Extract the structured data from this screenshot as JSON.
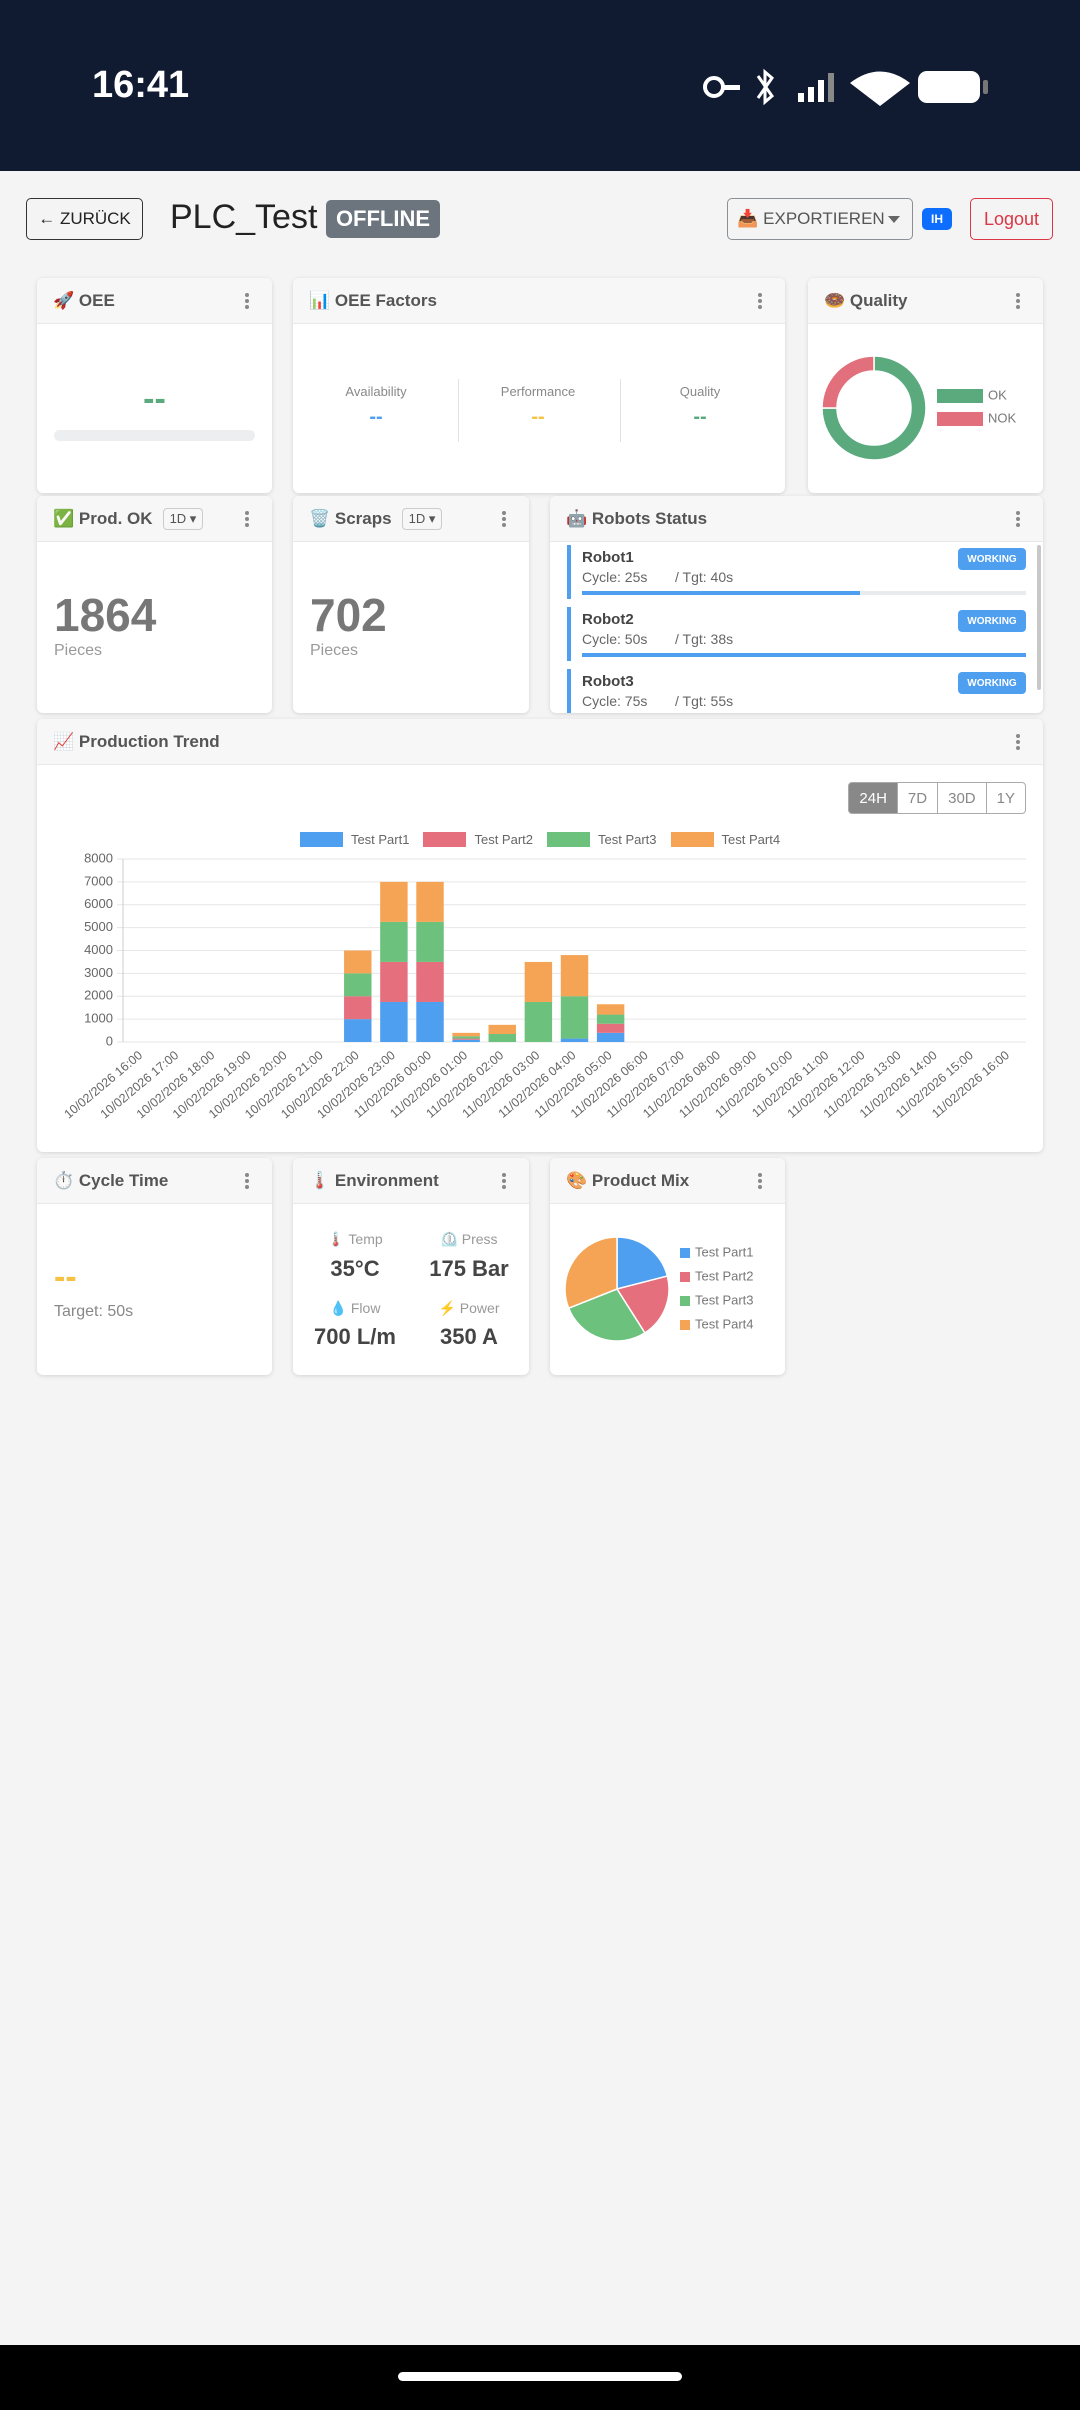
{
  "status_bar": {
    "time": "16:41"
  },
  "header": {
    "back": "← ZURÜCK",
    "title": "PLC_Test",
    "status": "OFFLINE",
    "export": "📥 EXPORTIEREN",
    "user": "IH",
    "logout": "Logout"
  },
  "oee": {
    "title": "🚀 OEE",
    "value": "--"
  },
  "oee_factors": {
    "title": "📊 OEE Factors",
    "items": [
      {
        "label": "Availability",
        "value": "--"
      },
      {
        "label": "Performance",
        "value": "--"
      },
      {
        "label": "Quality",
        "value": "--"
      }
    ]
  },
  "prod_ok": {
    "title": "✅ Prod. OK",
    "range": "1D",
    "value": "1864",
    "unit": "Pieces"
  },
  "scraps": {
    "title": "🗑️ Scraps",
    "range": "1D",
    "value": "702",
    "unit": "Pieces"
  },
  "robots": {
    "title": "🤖 Robots Status",
    "items": [
      {
        "name": "Robot1",
        "status": "WORKING",
        "cycle_label": "Cycle: 25s",
        "target_label": "/ Tgt: 40s",
        "cycle": 25,
        "target": 40
      },
      {
        "name": "Robot2",
        "status": "WORKING",
        "cycle_label": "Cycle: 50s",
        "target_label": "/ Tgt: 38s",
        "cycle": 50,
        "target": 38
      },
      {
        "name": "Robot3",
        "status": "WORKING",
        "cycle_label": "Cycle: 75s",
        "target_label": "/ Tgt: 55s",
        "cycle": 75,
        "target": 55
      }
    ]
  },
  "cycle_time": {
    "title": "⏱️ Cycle Time",
    "value": "--",
    "target": "Target: 50s"
  },
  "environment": {
    "title": "🌡️ Environment",
    "items": [
      {
        "label": "🌡️ Temp",
        "value": "35°C"
      },
      {
        "label": "⏲️ Press",
        "value": "175 Bar"
      },
      {
        "label": "💧 Flow",
        "value": "700 L/m"
      },
      {
        "label": "⚡ Power",
        "value": "350 A"
      }
    ]
  },
  "chart_data": [
    {
      "type": "doughnut",
      "title": "🍩 Quality",
      "categories": [
        "OK",
        "NOK"
      ],
      "values": [
        75,
        25
      ],
      "colors": [
        "#5aaa7e",
        "#e2707c"
      ]
    },
    {
      "type": "bar",
      "title": "📈 Production Trend",
      "stacked": true,
      "grid": true,
      "legend": "top",
      "range_buttons": [
        "24H",
        "7D",
        "30D",
        "1Y"
      ],
      "active_range": "24H",
      "categories": [
        "10/02/2026 16:00",
        "10/02/2026 17:00",
        "10/02/2026 18:00",
        "10/02/2026 19:00",
        "10/02/2026 20:00",
        "10/02/2026 21:00",
        "10/02/2026 22:00",
        "10/02/2026 23:00",
        "11/02/2026 00:00",
        "11/02/2026 01:00",
        "11/02/2026 02:00",
        "11/02/2026 03:00",
        "11/02/2026 04:00",
        "11/02/2026 05:00",
        "11/02/2026 06:00",
        "11/02/2026 07:00",
        "11/02/2026 08:00",
        "11/02/2026 09:00",
        "11/02/2026 10:00",
        "11/02/2026 11:00",
        "11/02/2026 12:00",
        "11/02/2026 13:00",
        "11/02/2026 14:00",
        "11/02/2026 15:00",
        "11/02/2026 16:00"
      ],
      "ylim": [
        0,
        8000
      ],
      "yticks": [
        0,
        1000,
        2000,
        3000,
        4000,
        5000,
        6000,
        7000,
        8000
      ],
      "series": [
        {
          "name": "Test Part1",
          "color": "#4f9ff0",
          "values": [
            0,
            0,
            0,
            0,
            0,
            0,
            1000,
            1750,
            1750,
            100,
            0,
            0,
            150,
            400,
            0,
            0,
            0,
            0,
            0,
            0,
            0,
            0,
            0,
            0,
            0
          ]
        },
        {
          "name": "Test Part2",
          "color": "#e56f7d",
          "values": [
            0,
            0,
            0,
            0,
            0,
            0,
            1000,
            1750,
            1750,
            50,
            0,
            0,
            0,
            400,
            0,
            0,
            0,
            0,
            0,
            0,
            0,
            0,
            0,
            0,
            0
          ]
        },
        {
          "name": "Test Part3",
          "color": "#6cc17c",
          "values": [
            0,
            0,
            0,
            0,
            0,
            0,
            1000,
            1750,
            1750,
            100,
            350,
            1750,
            1850,
            400,
            0,
            0,
            0,
            0,
            0,
            0,
            0,
            0,
            0,
            0,
            0
          ]
        },
        {
          "name": "Test Part4",
          "color": "#f5a455",
          "values": [
            0,
            0,
            0,
            0,
            0,
            0,
            1000,
            1750,
            1750,
            150,
            400,
            1750,
            1800,
            450,
            0,
            0,
            0,
            0,
            0,
            0,
            0,
            0,
            0,
            0,
            0
          ]
        }
      ]
    },
    {
      "type": "pie",
      "title": "🎨 Product Mix",
      "categories": [
        "Test Part1",
        "Test Part2",
        "Test Part3",
        "Test Part4"
      ],
      "values": [
        21,
        20,
        28,
        31
      ],
      "colors": [
        "#4f9ff0",
        "#e56f7d",
        "#6cc17c",
        "#f5a455"
      ]
    }
  ]
}
